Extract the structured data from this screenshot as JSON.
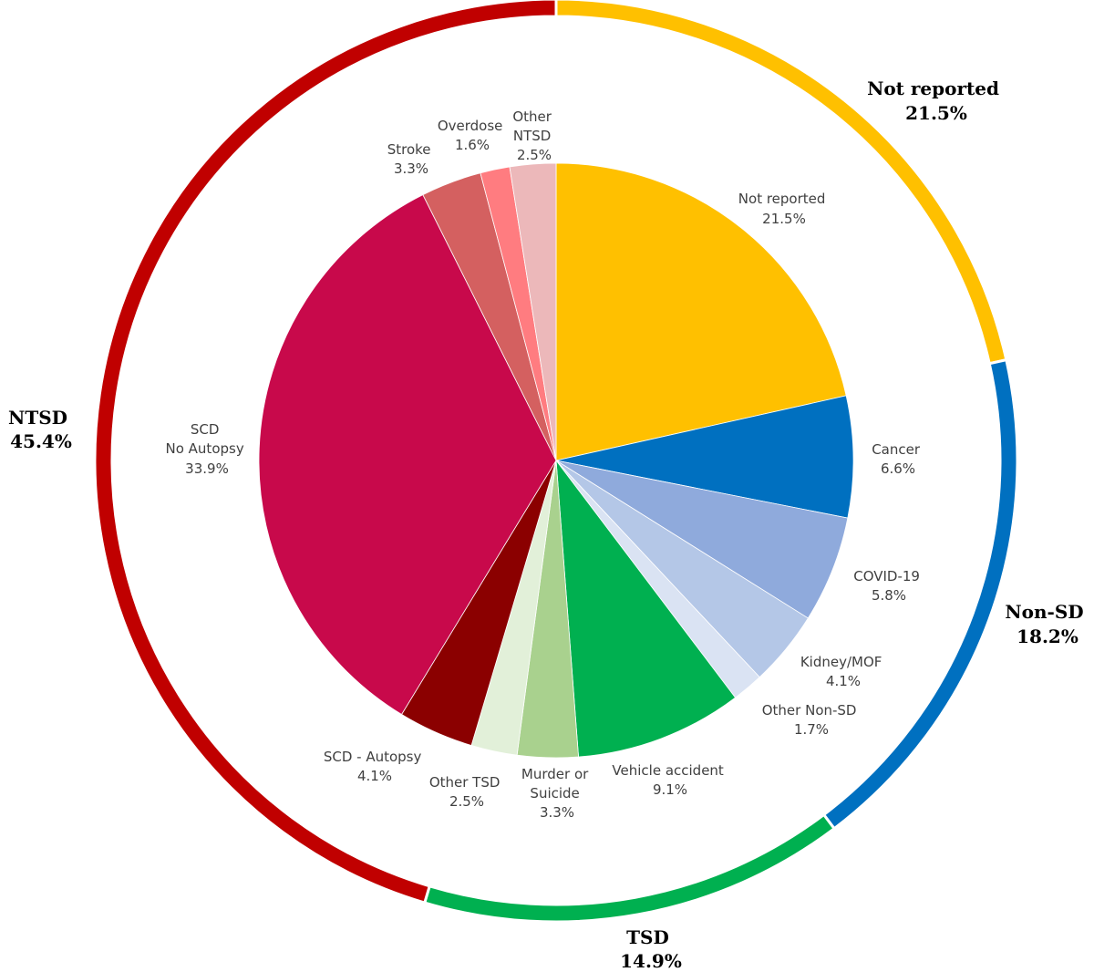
{
  "chart_data": {
    "type": "pie",
    "title": "",
    "inner": [
      {
        "name": "Not reported",
        "value": 21.5,
        "label": "21.5%",
        "color": "#FFC000"
      },
      {
        "name": "Cancer",
        "value": 6.6,
        "label": "6.6%",
        "color": "#0070C0"
      },
      {
        "name": "COVID-19",
        "value": 5.8,
        "label": "5.8%",
        "color": "#8FAADC"
      },
      {
        "name": "Kidney/MOF",
        "value": 4.1,
        "label": "4.1%",
        "color": "#B4C7E7"
      },
      {
        "name": "Other Non-SD",
        "value": 1.7,
        "label": "1.7%",
        "color": "#DAE3F3"
      },
      {
        "name": "Vehicle accident",
        "value": 9.1,
        "label": "9.1%",
        "color": "#00B050"
      },
      {
        "name": "Murder or Suicide",
        "value": 3.3,
        "label": "3.3%",
        "color": "#A9D18E"
      },
      {
        "name": "Other TSD",
        "value": 2.5,
        "label": "2.5%",
        "color": "#E2F0D9"
      },
      {
        "name": "SCD - Autopsy",
        "value": 4.1,
        "label": "4.1%",
        "color": "#8B0000"
      },
      {
        "name": "SCD No Autopsy",
        "value": 33.9,
        "label": "33.9%",
        "color": "#C8094B"
      },
      {
        "name": "Stroke",
        "value": 3.3,
        "label": "3.3%",
        "color": "#D46060"
      },
      {
        "name": "Overdose",
        "value": 1.6,
        "label": "1.6%",
        "color": "#FF7C80"
      },
      {
        "name": "Other NTSD",
        "value": 2.5,
        "label": "2.5%",
        "color": "#ECB8BA"
      }
    ],
    "outer": [
      {
        "name": "Not reported",
        "value": 21.5,
        "label": "21.5%",
        "color": "#FFC000"
      },
      {
        "name": "Non-SD",
        "value": 18.2,
        "label": "18.2%",
        "color": "#0070C0"
      },
      {
        "name": "TSD",
        "value": 14.9,
        "label": "14.9%",
        "color": "#00B050"
      },
      {
        "name": "NTSD",
        "value": 45.4,
        "label": "45.4%",
        "color": "#C00000"
      }
    ]
  }
}
